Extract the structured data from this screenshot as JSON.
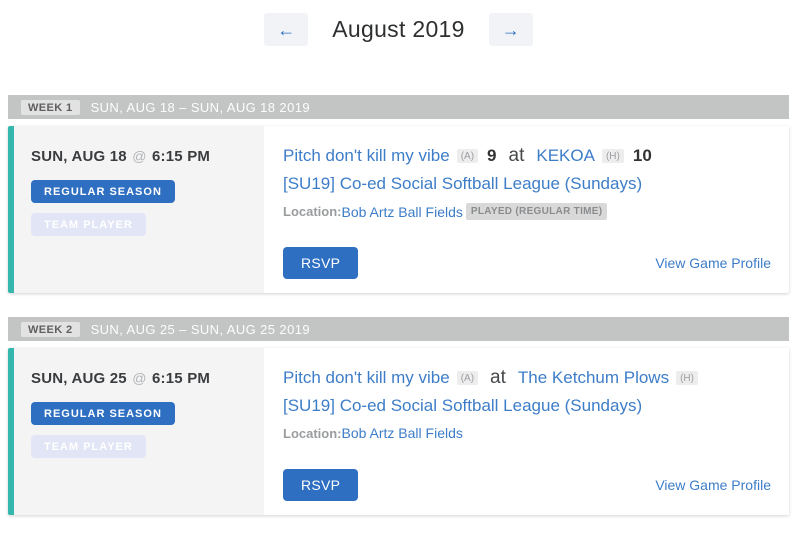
{
  "header": {
    "title": "August 2019",
    "prev_icon": "←",
    "next_icon": "→"
  },
  "colors": {
    "accent_teal": "#35b7ae",
    "primary_blue": "#2e6fc2",
    "link_blue": "#3d7dc8",
    "week_bar_gray": "#c3c4c4",
    "card_left_gray": "#f4f4f5",
    "role_badge_lavender": "#e2e5f6",
    "status_pill_gray": "#d9d9d9"
  },
  "weeks": [
    {
      "week_label": "WEEK 1",
      "date_range": "SUN, AUG 18 – SUN, AUG 18 2019",
      "game": {
        "date": "SUN, AUG 18",
        "at_symbol": "@",
        "time": "6:15 PM",
        "season_badge": "REGULAR SEASON",
        "role_badge": "TEAM PLAYER",
        "away_team": "Pitch don't kill my vibe",
        "away_tag": "(A)",
        "away_score": "9",
        "vs_word": "at",
        "home_team": "KEKOA",
        "home_tag": "(H)",
        "home_score": "10",
        "league": "[SU19] Co-ed Social Softball League (Sundays)",
        "location_label": "Location:",
        "location": "Bob Artz Ball Fields",
        "status_badge": "PLAYED (REGULAR TIME)",
        "rsvp_label": "RSVP",
        "profile_link": "View Game Profile"
      }
    },
    {
      "week_label": "WEEK 2",
      "date_range": "SUN, AUG 25 – SUN, AUG 25 2019",
      "game": {
        "date": "SUN, AUG 25",
        "at_symbol": "@",
        "time": "6:15 PM",
        "season_badge": "REGULAR SEASON",
        "role_badge": "TEAM PLAYER",
        "away_team": "Pitch don't kill my vibe",
        "away_tag": "(A)",
        "away_score": "",
        "vs_word": "at",
        "home_team": "The Ketchum Plows",
        "home_tag": "(H)",
        "home_score": "",
        "league": "[SU19] Co-ed Social Softball League (Sundays)",
        "location_label": "Location:",
        "location": "Bob Artz Ball Fields",
        "status_badge": "",
        "rsvp_label": "RSVP",
        "profile_link": "View Game Profile"
      }
    }
  ]
}
